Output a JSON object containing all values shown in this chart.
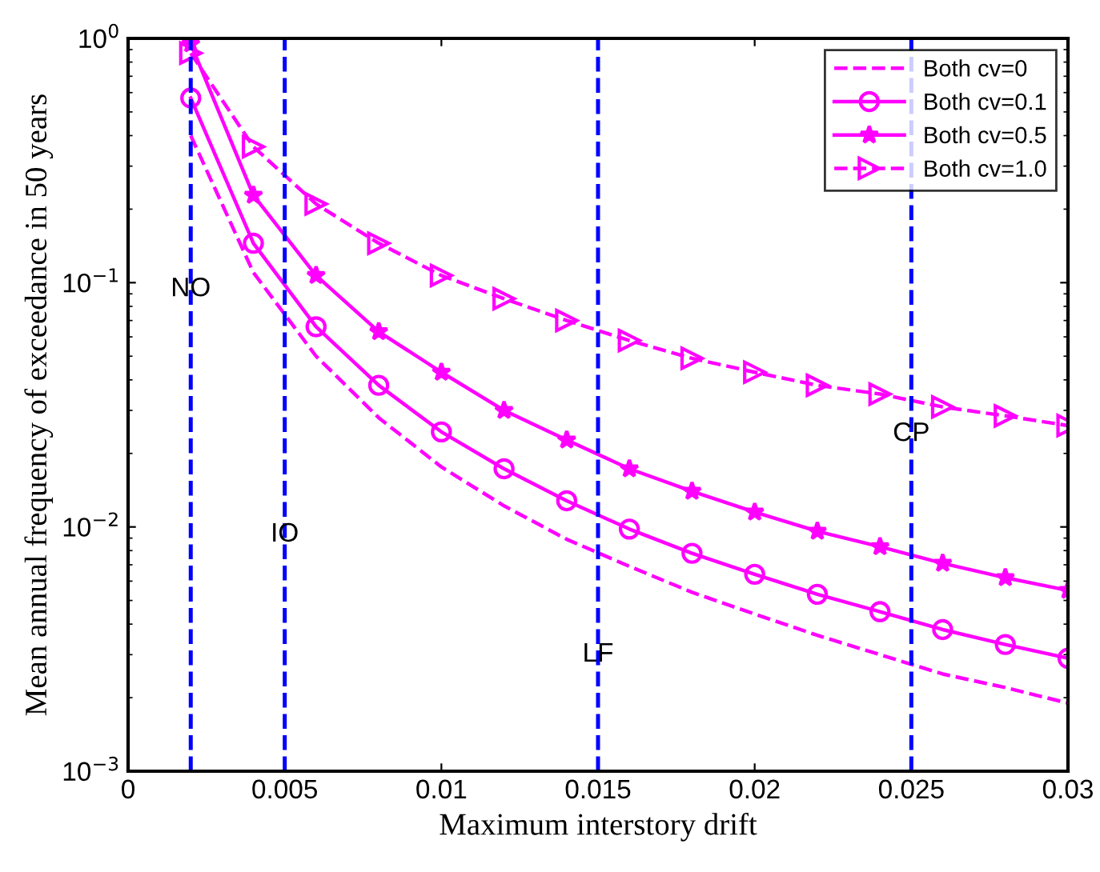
{
  "chart_data": {
    "type": "line",
    "xlabel": "Maximum interstory drift",
    "ylabel": "Mean annual frequency of exceedance in 50 years",
    "log": "y",
    "xlim": [
      0,
      0.03
    ],
    "xticks": [
      0,
      0.005,
      0.01,
      0.015,
      0.02,
      0.025,
      0.03
    ],
    "ylim": [
      0.001,
      1
    ],
    "yticks": [
      {
        "value": 0.001,
        "label": "10$^{−3}$"
      },
      {
        "value": 0.01,
        "label": "10$^{−2}$"
      },
      {
        "value": 0.1,
        "label": "10$^{−1}$"
      },
      {
        "value": 1,
        "label": "10$^{0}$"
      }
    ],
    "grid": false,
    "legend": "top right",
    "series": [
      {
        "name": "Both cv=0",
        "color": "#ff00ff",
        "line_style": "dashed",
        "marker": "none",
        "x": [
          0.002,
          0.004,
          0.006,
          0.008,
          0.01,
          0.012,
          0.014,
          0.016,
          0.018,
          0.02,
          0.022,
          0.024,
          0.026,
          0.028,
          0.03
        ],
        "values": [
          0.4,
          0.11,
          0.05,
          0.028,
          0.0176,
          0.0122,
          0.0089,
          0.0069,
          0.0054,
          0.0044,
          0.0036,
          0.003,
          0.0025,
          0.0022,
          0.0019
        ]
      },
      {
        "name": "Both cv=0.1",
        "color": "#ff00ff",
        "line_style": "solid",
        "marker": "circle",
        "x": [
          0.002,
          0.004,
          0.006,
          0.008,
          0.01,
          0.012,
          0.014,
          0.016,
          0.018,
          0.02,
          0.022,
          0.024,
          0.026,
          0.028,
          0.03
        ],
        "values": [
          0.57,
          0.145,
          0.066,
          0.038,
          0.0245,
          0.0173,
          0.0128,
          0.0098,
          0.0078,
          0.0064,
          0.0053,
          0.0045,
          0.0038,
          0.0033,
          0.0029
        ]
      },
      {
        "name": "Both cv=0.5",
        "color": "#ff00ff",
        "line_style": "solid",
        "marker": "star",
        "x": [
          0.002,
          0.004,
          0.006,
          0.008,
          0.01,
          0.012,
          0.014,
          0.016,
          0.018,
          0.02,
          0.022,
          0.024,
          0.026,
          0.028,
          0.03
        ],
        "values": [
          0.95,
          0.228,
          0.107,
          0.063,
          0.043,
          0.03,
          0.0227,
          0.0173,
          0.014,
          0.0115,
          0.0096,
          0.0083,
          0.0071,
          0.0062,
          0.0055
        ]
      },
      {
        "name": "Both cv=1.0",
        "color": "#ff00ff",
        "line_style": "dashed",
        "marker": "triangle",
        "x": [
          0.002,
          0.004,
          0.006,
          0.008,
          0.01,
          0.012,
          0.014,
          0.016,
          0.018,
          0.02,
          0.022,
          0.024,
          0.026,
          0.028,
          0.03
        ],
        "values": [
          0.87,
          0.36,
          0.21,
          0.145,
          0.107,
          0.086,
          0.07,
          0.058,
          0.049,
          0.043,
          0.038,
          0.035,
          0.031,
          0.0285,
          0.026
        ]
      }
    ],
    "ref_lines": [
      {
        "axis": "x",
        "value": 0.002,
        "color": "#0000ff",
        "line_style": "dashed"
      },
      {
        "axis": "x",
        "value": 0.005,
        "color": "#0000ff",
        "line_style": "dashed"
      },
      {
        "axis": "x",
        "value": 0.015,
        "color": "#0000ff",
        "line_style": "dashed"
      },
      {
        "axis": "x",
        "value": 0.025,
        "color": "#0000ff",
        "line_style": "dashed"
      }
    ],
    "annotations": [
      {
        "text": "NO",
        "x": 0.002,
        "y": 0.094
      },
      {
        "text": "IO",
        "x": 0.005,
        "y": 0.0093
      },
      {
        "text": "LF",
        "x": 0.015,
        "y": 0.003
      },
      {
        "text": "CP",
        "x": 0.025,
        "y": 0.024
      }
    ]
  }
}
